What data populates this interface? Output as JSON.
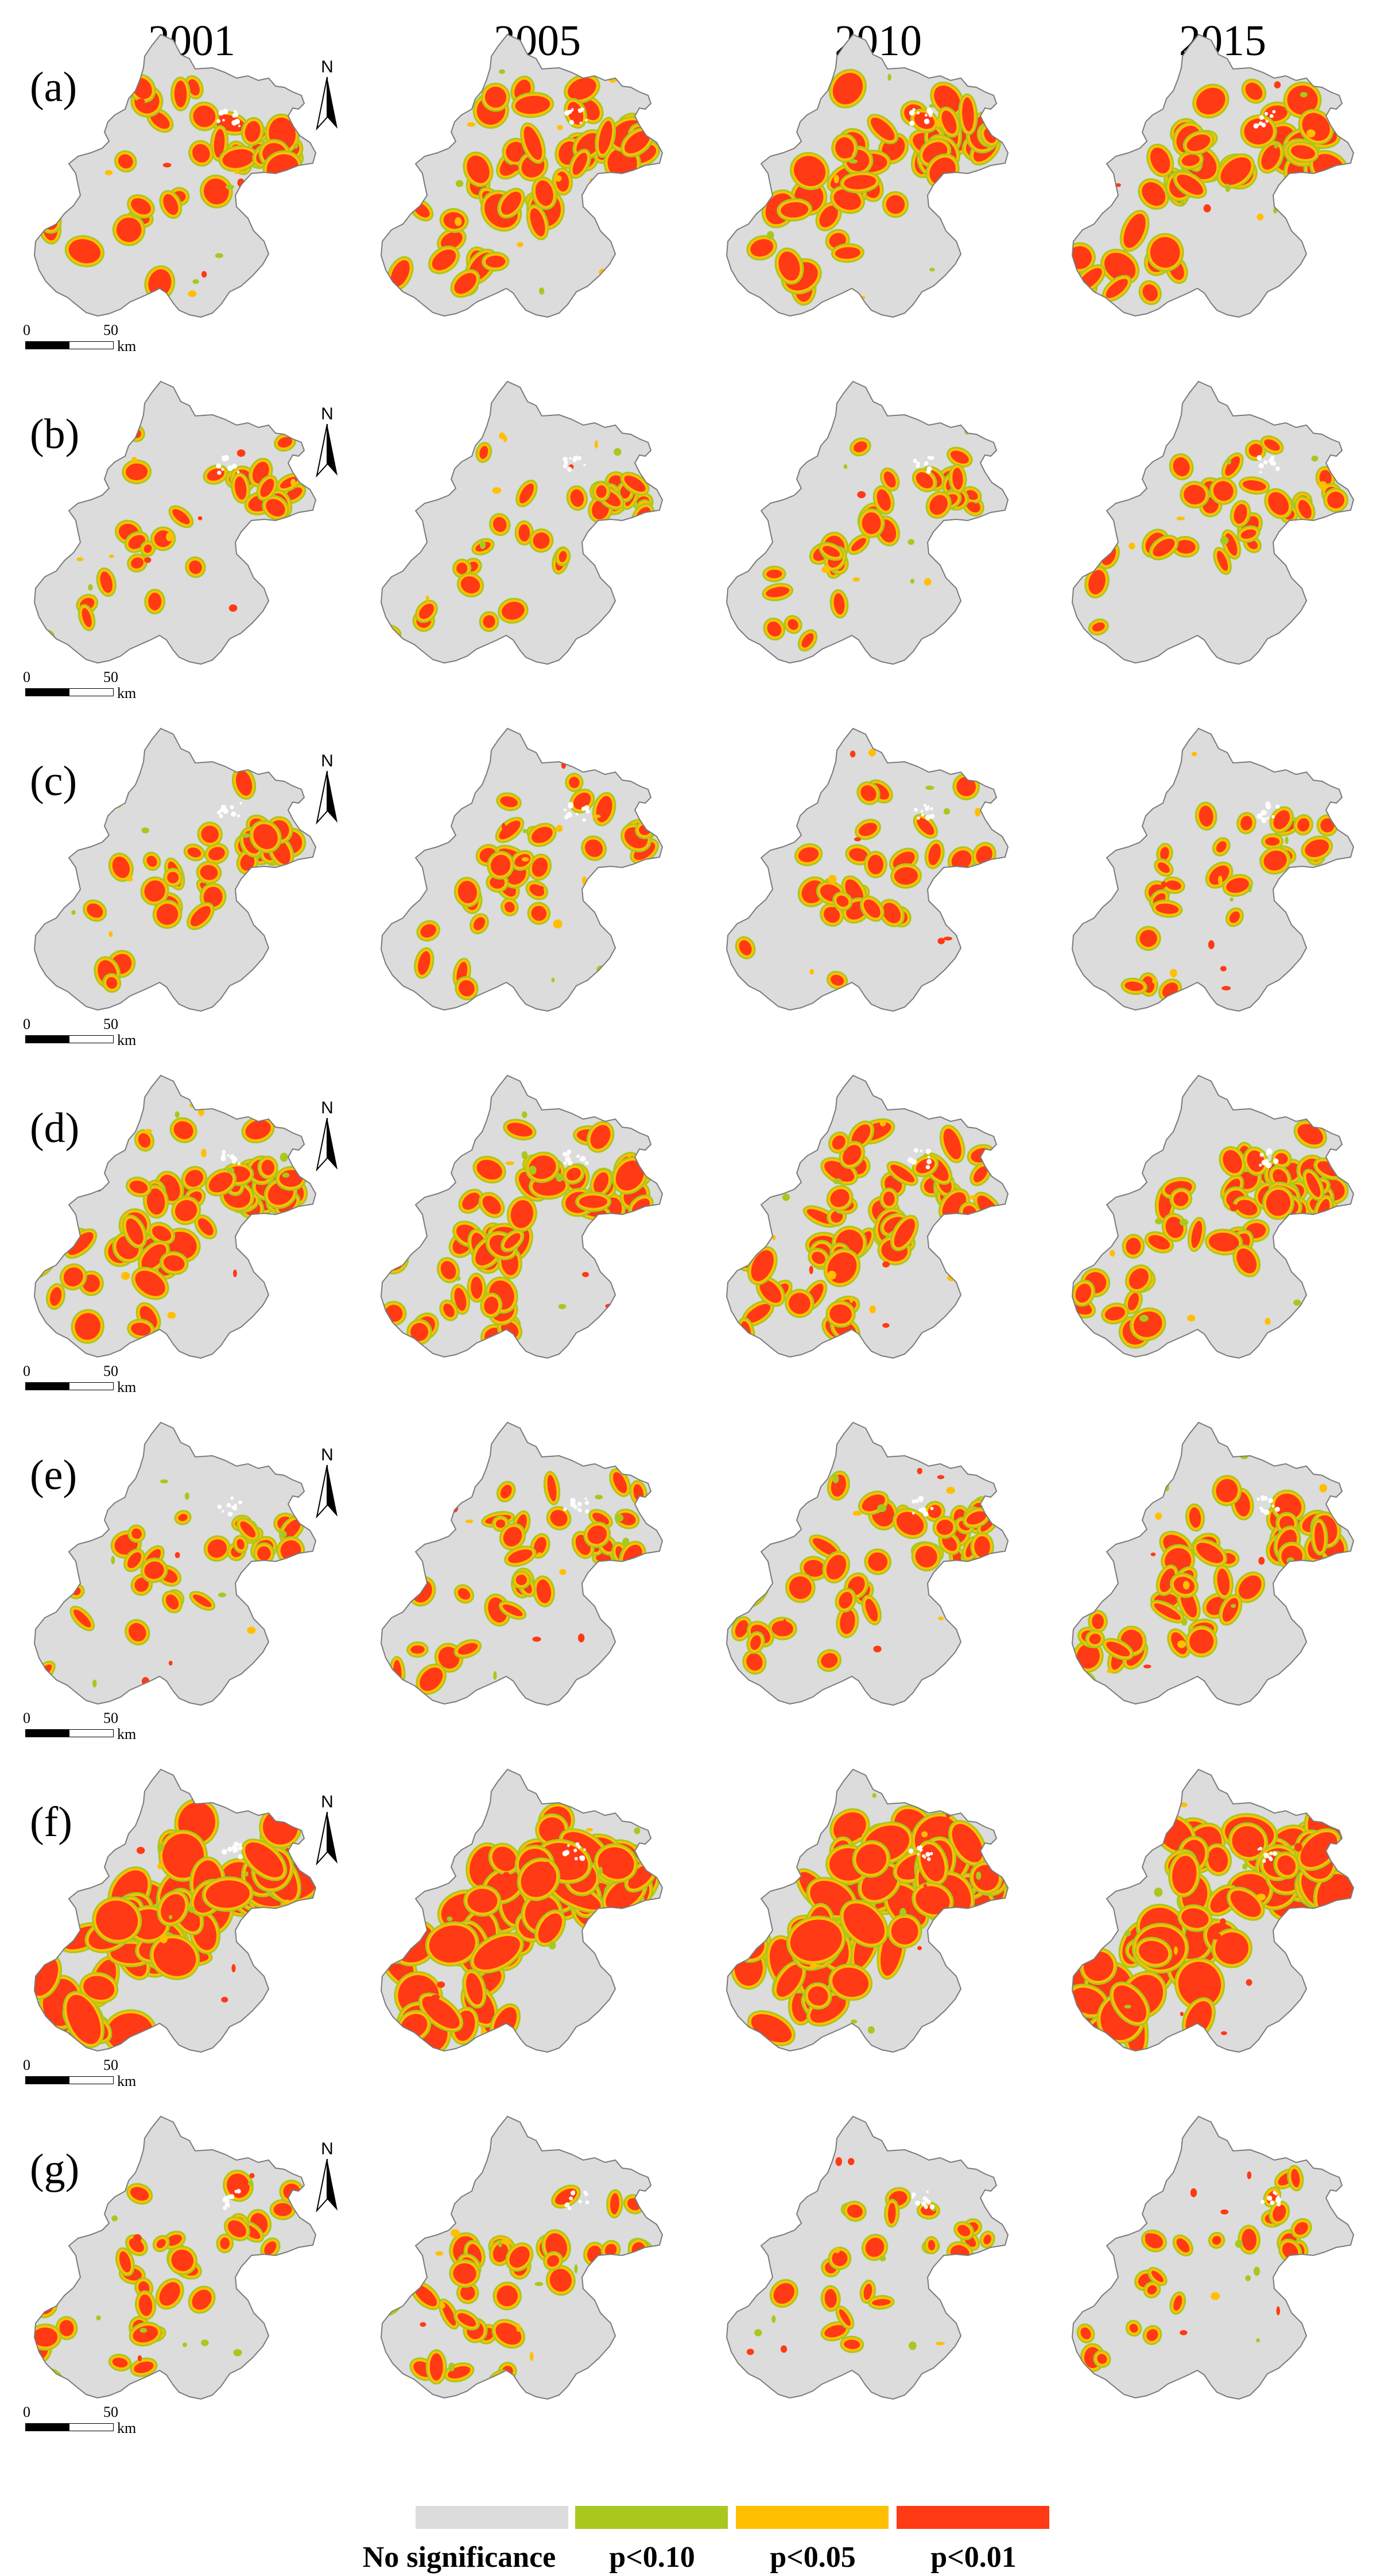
{
  "figure": {
    "years": [
      "2001",
      "2005",
      "2010",
      "2015"
    ],
    "panels": [
      "(a)",
      "(b)",
      "(c)",
      "(d)",
      "(e)",
      "(f)",
      "(g)"
    ],
    "north_label": "N",
    "scale": {
      "zero": "0",
      "fifty": "50",
      "unit": "km"
    }
  },
  "legend": {
    "items": [
      {
        "label": "No significance",
        "color": "#dcdcdc"
      },
      {
        "label": "p<0.10",
        "color": "#a8c81e"
      },
      {
        "label": "p<0.05",
        "color": "#ffbf00"
      },
      {
        "label": "p<0.01",
        "color": "#ff3a14"
      }
    ]
  },
  "colors": {
    "base": "#dcdcdc",
    "outline": "#7a7a7a",
    "p10": "#a8c81e",
    "p05": "#ffbf00",
    "p01": "#ff3a14"
  }
}
